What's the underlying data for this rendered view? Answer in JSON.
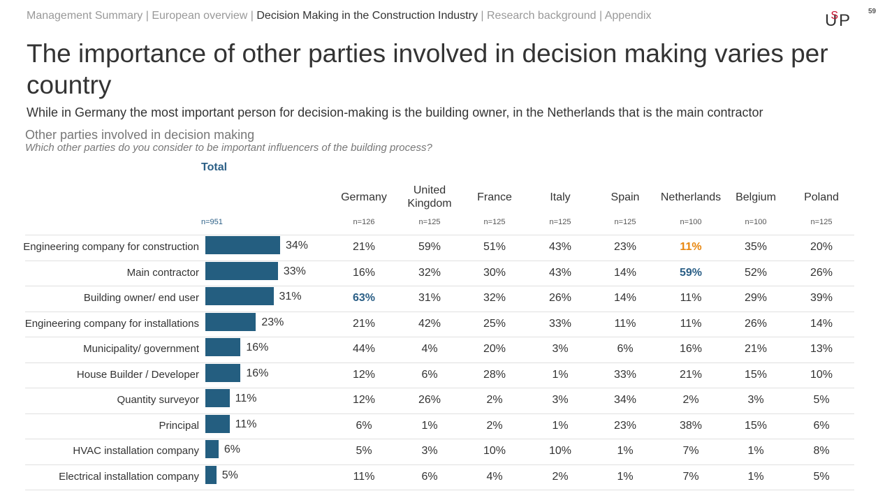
{
  "breadcrumb": {
    "items": [
      "Management Summary",
      "European overview",
      "Decision Making in the Construction Industry",
      "Research background",
      "Appendix"
    ],
    "active_index": 2,
    "separator": " | "
  },
  "logo": {
    "text_left": "U",
    "text_s": "S",
    "text_right": "P"
  },
  "page_number": "59",
  "title": "The importance of other parties involved in decision making varies per country",
  "subtitle": "While in Germany the most important person for decision-making is the building owner, in the Netherlands that is the main contractor",
  "section_title": "Other parties involved in decision making",
  "question": "Which other parties do you consider to be important influencers of the building process?",
  "colors": {
    "bar": "#245e80",
    "highlight_blue": "#2b5f86",
    "highlight_orange": "#e8870f"
  },
  "chart_data": {
    "type": "bar",
    "orientation": "horizontal",
    "total_label": "Total",
    "total_n": "n=951",
    "categories": [
      "Engineering company for construction",
      "Main contractor",
      "Building owner/ end user",
      "Engineering company for installations",
      "Municipality/ government",
      "House Builder / Developer",
      "Quantity surveyor",
      "Principal",
      "HVAC installation company",
      "Electrical installation company"
    ],
    "values": [
      34,
      33,
      31,
      23,
      16,
      16,
      11,
      11,
      6,
      5
    ],
    "unit": "%",
    "xlim": [
      0,
      34
    ],
    "table": {
      "countries": [
        {
          "name": "Germany",
          "n": "n=126",
          "values": [
            21,
            16,
            63,
            21,
            44,
            12,
            12,
            6,
            5,
            11
          ],
          "highlight": {
            "2": "blue"
          }
        },
        {
          "name": "United Kingdom",
          "n": "n=125",
          "values": [
            59,
            32,
            31,
            42,
            4,
            6,
            26,
            1,
            3,
            6
          ],
          "highlight": {}
        },
        {
          "name": "France",
          "n": "n=125",
          "values": [
            51,
            30,
            32,
            25,
            20,
            28,
            2,
            2,
            10,
            4
          ],
          "highlight": {}
        },
        {
          "name": "Italy",
          "n": "n=125",
          "values": [
            43,
            43,
            26,
            33,
            3,
            1,
            3,
            1,
            10,
            2
          ],
          "highlight": {}
        },
        {
          "name": "Spain",
          "n": "n=125",
          "values": [
            23,
            14,
            14,
            11,
            6,
            33,
            34,
            23,
            1,
            1
          ],
          "highlight": {}
        },
        {
          "name": "Netherlands",
          "n": "n=100",
          "values": [
            11,
            59,
            11,
            11,
            16,
            21,
            2,
            38,
            7,
            7
          ],
          "highlight": {
            "0": "orange",
            "1": "blue"
          }
        },
        {
          "name": "Belgium",
          "n": "n=100",
          "values": [
            35,
            52,
            29,
            26,
            21,
            15,
            3,
            15,
            1,
            1
          ],
          "highlight": {}
        },
        {
          "name": "Poland",
          "n": "n=125",
          "values": [
            20,
            26,
            39,
            14,
            13,
            10,
            5,
            6,
            8,
            5
          ],
          "highlight": {}
        }
      ]
    }
  }
}
